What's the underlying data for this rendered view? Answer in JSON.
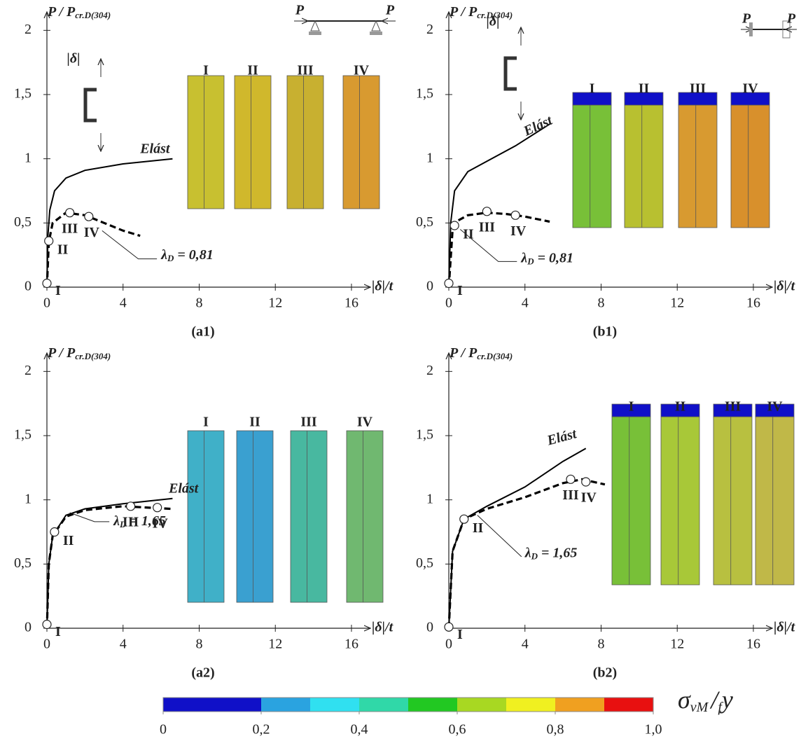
{
  "chart_data": [
    {
      "type": "line",
      "title": "(a1)",
      "ylabel": "P / P",
      "ylabel_sub": "cr.D(304)",
      "xlabel": "|δ|/t",
      "xlim": [
        0,
        16.7
      ],
      "ylim": [
        0,
        2.1
      ],
      "xticks": [
        0,
        4,
        8,
        12,
        16
      ],
      "yticks": [
        0,
        {
          "value": 0.5,
          "label": "0,5"
        },
        1,
        {
          "value": 1.5,
          "label": "1,5"
        },
        2
      ],
      "series": [
        {
          "name": "Elást",
          "color": "#000000",
          "style": "solid",
          "x": [
            0,
            0.05,
            0.15,
            0.4,
            1,
            2,
            4,
            6.6
          ],
          "values": [
            0,
            0.4,
            0.6,
            0.75,
            0.85,
            0.91,
            0.96,
            1.0
          ]
        },
        {
          "color": "#000000",
          "style": "dashed",
          "x": [
            0,
            0.1,
            0.3,
            1,
            2,
            3,
            4,
            4.9
          ],
          "values": [
            0,
            0.35,
            0.5,
            0.58,
            0.56,
            0.5,
            0.44,
            0.4
          ]
        }
      ],
      "points": [
        {
          "label": "I",
          "x": 0,
          "y": 0.03
        },
        {
          "label": "II",
          "x": 0.1,
          "y": 0.36
        },
        {
          "label": "III",
          "x": 1.2,
          "y": 0.58
        },
        {
          "label": "IV",
          "x": 2.2,
          "y": 0.55
        }
      ],
      "annotation": {
        "symbol": "λ",
        "sub": "D",
        "text": " = 0,81"
      },
      "support_labels": [
        "P",
        "P"
      ],
      "section_label": "|δ|"
    },
    {
      "type": "line",
      "title": "(b1)",
      "ylabel": "P / P",
      "ylabel_sub": "cr.D(304)",
      "xlabel": "|δ|/t",
      "xlim": [
        0,
        16.7
      ],
      "ylim": [
        0,
        2.1
      ],
      "xticks": [
        0,
        4,
        8,
        12,
        16
      ],
      "yticks": [
        0,
        {
          "value": 0.5,
          "label": "0,5"
        },
        1,
        {
          "value": 1.5,
          "label": "1,5"
        },
        2
      ],
      "series": [
        {
          "name": "Elást",
          "color": "#000000",
          "style": "solid",
          "x": [
            0,
            0.1,
            0.3,
            1,
            2,
            3.5,
            5.3
          ],
          "values": [
            0,
            0.5,
            0.75,
            0.9,
            0.98,
            1.1,
            1.27
          ]
        },
        {
          "color": "#000000",
          "style": "dashed",
          "x": [
            0,
            0.2,
            0.5,
            1,
            2,
            3,
            4,
            5.3
          ],
          "values": [
            0,
            0.45,
            0.52,
            0.56,
            0.58,
            0.57,
            0.55,
            0.51
          ]
        }
      ],
      "points": [
        {
          "label": "I",
          "x": 0,
          "y": 0.03
        },
        {
          "label": "II",
          "x": 0.3,
          "y": 0.48
        },
        {
          "label": "III",
          "x": 2,
          "y": 0.59
        },
        {
          "label": "IV",
          "x": 3.5,
          "y": 0.56
        }
      ],
      "annotation": {
        "symbol": "λ",
        "sub": "D",
        "text": " = 0,81"
      },
      "support_labels": [
        "P",
        "P"
      ],
      "section_label": "|δ|"
    },
    {
      "type": "line",
      "title": "(a2)",
      "ylabel": "P / P",
      "ylabel_sub": "cr.D(304)",
      "xlabel": "|δ|/t",
      "xlim": [
        0,
        16.7
      ],
      "ylim": [
        0,
        2.1
      ],
      "xticks": [
        0,
        4,
        8,
        12,
        16
      ],
      "yticks": [
        0,
        {
          "value": 0.5,
          "label": "0,5"
        },
        1,
        {
          "value": 1.5,
          "label": "1,5"
        },
        2
      ],
      "series": [
        {
          "name": "Elást",
          "color": "#000000",
          "style": "solid",
          "x": [
            0,
            0.1,
            0.3,
            1,
            2,
            4,
            6.6
          ],
          "values": [
            0,
            0.5,
            0.72,
            0.88,
            0.93,
            0.97,
            1.01
          ]
        },
        {
          "color": "#000000",
          "style": "dashed",
          "x": [
            0,
            0.1,
            0.3,
            1,
            2,
            4,
            6.5
          ],
          "values": [
            0,
            0.5,
            0.72,
            0.87,
            0.92,
            0.95,
            0.93
          ]
        }
      ],
      "points": [
        {
          "label": "I",
          "x": 0,
          "y": 0.03
        },
        {
          "label": "II",
          "x": 0.4,
          "y": 0.75
        },
        {
          "label": "III",
          "x": 4.4,
          "y": 0.95
        },
        {
          "label": "IV",
          "x": 5.8,
          "y": 0.94
        }
      ],
      "annotation": {
        "symbol": "λ",
        "sub": "D",
        "text": " = 1,65"
      }
    },
    {
      "type": "line",
      "title": "(b2)",
      "ylabel": "P / P",
      "ylabel_sub": "cr.D(304)",
      "xlabel": "|δ|/t",
      "xlim": [
        0,
        16.7
      ],
      "ylim": [
        0,
        2.1
      ],
      "xticks": [
        0,
        4,
        8,
        12,
        16
      ],
      "yticks": [
        0,
        {
          "value": 0.5,
          "label": "0,5"
        },
        1,
        {
          "value": 1.5,
          "label": "1,5"
        },
        2
      ],
      "series": [
        {
          "name": "Elást",
          "color": "#000000",
          "style": "solid",
          "x": [
            0,
            0.2,
            0.8,
            2,
            4,
            6,
            7.2
          ],
          "values": [
            0,
            0.6,
            0.85,
            0.95,
            1.1,
            1.3,
            1.4
          ]
        },
        {
          "color": "#000000",
          "style": "dashed",
          "x": [
            0,
            0.2,
            0.8,
            2,
            4,
            6,
            7,
            8.2
          ],
          "values": [
            0,
            0.6,
            0.85,
            0.93,
            1.02,
            1.13,
            1.16,
            1.12
          ]
        }
      ],
      "points": [
        {
          "label": "I",
          "x": 0,
          "y": 0.01
        },
        {
          "label": "II",
          "x": 0.8,
          "y": 0.85
        },
        {
          "label": "III",
          "x": 6.4,
          "y": 1.16
        },
        {
          "label": "IV",
          "x": 7.2,
          "y": 1.14
        }
      ],
      "annotation": {
        "symbol": "λ",
        "sub": "D",
        "text": " = 1,65"
      }
    }
  ],
  "colorbar": {
    "colors": [
      "#1010c8",
      "#1010c8",
      "#2aa3e0",
      "#30e0f0",
      "#30d8a8",
      "#22c822",
      "#a8d822",
      "#f0f020",
      "#f0a020",
      "#e81010"
    ],
    "lim": [
      0,
      1
    ],
    "ticks": [
      0,
      {
        "value": 0.2,
        "label": "0,2"
      },
      {
        "value": 0.4,
        "label": "0,4"
      },
      {
        "value": 0.6,
        "label": "0,6"
      },
      {
        "value": 0.8,
        "label": "0,8"
      },
      {
        "value": 1.0,
        "label": "1,0"
      }
    ],
    "label": [
      "σ",
      "vM",
      "/",
      "f",
      "y"
    ]
  }
}
